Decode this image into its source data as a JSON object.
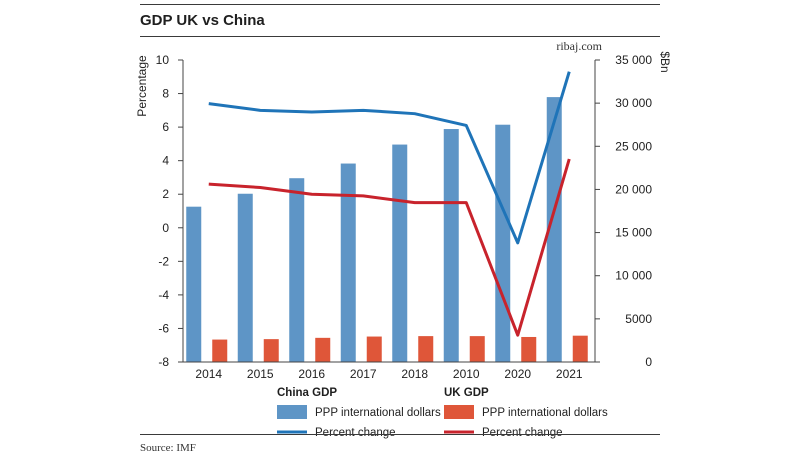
{
  "title": "GDP UK vs China",
  "watermark": "ribaj.com",
  "source": "Source: IMF",
  "chart_data": {
    "type": "bar",
    "categories": [
      "2014",
      "2015",
      "2016",
      "2017",
      "2018",
      "2010",
      "2020",
      "2021"
    ],
    "left_axis": {
      "label": "Percentage",
      "range": [
        -8,
        10
      ],
      "ticks": [
        "10",
        "8",
        "6",
        "4",
        "2",
        "0",
        "-2",
        "-4",
        "-6",
        "-8"
      ]
    },
    "right_axis": {
      "label": "$Bn",
      "range": [
        0,
        35000
      ],
      "ticks": [
        "35 000",
        "30 000",
        "25 000",
        "20 000",
        "15 000",
        "10 000",
        "5000",
        "0"
      ]
    },
    "series": [
      {
        "name": "PPP international dollars",
        "group": "China GDP",
        "kind": "bar",
        "axis": "right",
        "color": "#5e95c6",
        "values": [
          18000,
          19500,
          21300,
          23000,
          25200,
          27000,
          27500,
          30700
        ]
      },
      {
        "name": "PPP international dollars",
        "group": "UK GDP",
        "kind": "bar",
        "axis": "right",
        "color": "#df5639",
        "values": [
          2600,
          2650,
          2800,
          2950,
          3000,
          3000,
          2900,
          3050
        ]
      },
      {
        "name": "Percent change",
        "group": "China GDP",
        "kind": "line",
        "axis": "left",
        "color": "#1f74b8",
        "values": [
          7.4,
          7.0,
          6.9,
          7.0,
          6.8,
          6.1,
          -0.9,
          9.3
        ]
      },
      {
        "name": "Percent change",
        "group": "UK GDP",
        "kind": "line",
        "axis": "left",
        "color": "#c8232c",
        "values": [
          2.6,
          2.4,
          2.0,
          1.9,
          1.5,
          1.5,
          -6.4,
          4.1
        ]
      }
    ],
    "legend": {
      "placement": "bottom",
      "groups": [
        "China GDP",
        "UK GDP"
      ],
      "bar_label": "PPP international dollars",
      "line_label": "Percent change"
    },
    "grid": true
  }
}
